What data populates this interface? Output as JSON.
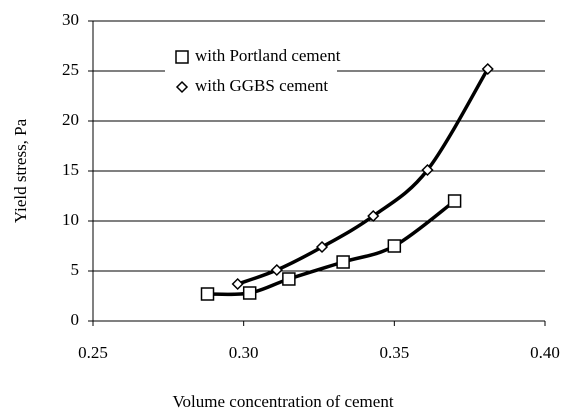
{
  "chart_data": {
    "type": "scatter",
    "xlabel": "Volume concentration of cement",
    "ylabel": "Yield stress, Pa",
    "xlim": [
      0.25,
      0.4
    ],
    "xticks": [
      0.25,
      {
        "value": 0.3,
        "label": "0.30"
      },
      0.35,
      {
        "value": 0.4,
        "label": "0.40"
      }
    ],
    "ylim": [
      0,
      30
    ],
    "yticks": [
      0,
      5,
      10,
      15,
      20,
      25,
      30
    ],
    "grid": true,
    "legend": "top",
    "series": [
      {
        "name": "with Portland cement",
        "marker": "square",
        "color": "#000000",
        "x": [
          0.288,
          0.302,
          0.315,
          0.333,
          0.35,
          0.37
        ],
        "values": [
          2.7,
          2.8,
          4.2,
          5.9,
          7.5,
          12.0
        ]
      },
      {
        "name": "with GGBS cement",
        "marker": "diamond",
        "color": "#000000",
        "x": [
          0.298,
          0.311,
          0.326,
          0.343,
          0.361,
          0.381
        ],
        "values": [
          3.7,
          5.1,
          7.4,
          10.5,
          15.1,
          25.2
        ]
      }
    ]
  }
}
